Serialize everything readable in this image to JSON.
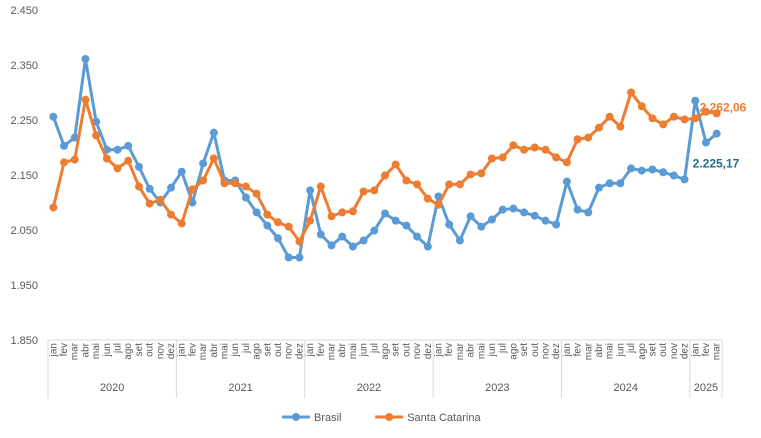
{
  "chart_data": {
    "type": "line",
    "title": "",
    "xlabel": "",
    "ylabel": "",
    "ylim": [
      1850,
      2450
    ],
    "yticks": [
      "1.850",
      "1.950",
      "2.050",
      "2.150",
      "2.250",
      "2.350",
      "2.450"
    ],
    "ytick_values": [
      1850,
      1950,
      2050,
      2150,
      2250,
      2350,
      2450
    ],
    "grid": false,
    "legend": "bottom",
    "months": [
      "jan",
      "fev",
      "mar",
      "abr",
      "mai",
      "jun",
      "jul",
      "ago",
      "set",
      "out",
      "nov",
      "dez"
    ],
    "years": [
      {
        "label": "2020",
        "count": 12
      },
      {
        "label": "2021",
        "count": 12
      },
      {
        "label": "2022",
        "count": 12
      },
      {
        "label": "2023",
        "count": 12
      },
      {
        "label": "2024",
        "count": 12
      },
      {
        "label": "2025",
        "count": 3
      }
    ],
    "series": [
      {
        "name": "Brasil",
        "color": "#5B9BD5",
        "last_label": "2.225,17",
        "label_color": "#1F6E8C",
        "values": [
          2256,
          2203,
          2218,
          2361,
          2247,
          2196,
          2196,
          2203,
          2165,
          2125,
          2100,
          2127,
          2156,
          2100,
          2171,
          2227,
          2140,
          2140,
          2109,
          2082,
          2058,
          2035,
          2000,
          2000,
          2122,
          2042,
          2022,
          2038,
          2020,
          2031,
          2049,
          2080,
          2067,
          2058,
          2038,
          2020,
          2111,
          2060,
          2031,
          2075,
          2056,
          2069,
          2087,
          2089,
          2082,
          2076,
          2067,
          2060,
          2138,
          2087,
          2082,
          2127,
          2135,
          2135,
          2162,
          2158,
          2160,
          2155,
          2149,
          2142,
          2285,
          2209,
          2225.17
        ]
      },
      {
        "name": "Santa Catarina",
        "color": "#ED7D31",
        "last_label": "2.262,06",
        "label_color": "#ED7D31",
        "values": [
          2091,
          2173,
          2178,
          2287,
          2222,
          2180,
          2162,
          2176,
          2129,
          2098,
          2105,
          2078,
          2062,
          2124,
          2140,
          2180,
          2135,
          2135,
          2129,
          2116,
          2078,
          2064,
          2056,
          2029,
          2067,
          2129,
          2075,
          2082,
          2084,
          2120,
          2122,
          2149,
          2169,
          2140,
          2133,
          2107,
          2096,
          2133,
          2133,
          2151,
          2153,
          2180,
          2182,
          2204,
          2196,
          2200,
          2196,
          2182,
          2173,
          2215,
          2218,
          2236,
          2256,
          2238,
          2300,
          2275,
          2253,
          2242,
          2256,
          2251,
          2253,
          2265,
          2262.06
        ]
      }
    ]
  }
}
